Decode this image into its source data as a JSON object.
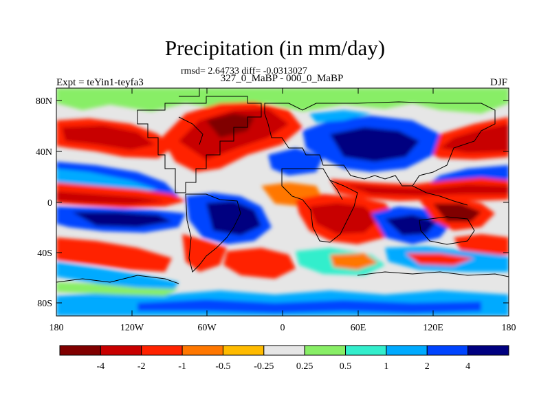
{
  "title": "Precipitation (in mm/day)",
  "stats": "rmsd= 2.64733 diff= -0.0313027",
  "subtitle": "327_0_MaBP - 000_0_MaBP",
  "left_label": "Expt = teYin1-teyfa3",
  "right_label": "DJF",
  "y_ticks": [
    "80N",
    "40N",
    "0",
    "40S",
    "80S"
  ],
  "x_ticks": [
    "180",
    "120W",
    "60W",
    "0",
    "60E",
    "120E",
    "180"
  ],
  "colorbar": {
    "colors": [
      "#800000",
      "#c80000",
      "#ff2200",
      "#ff7700",
      "#ffbb00",
      "#e6e6e6",
      "#88ee66",
      "#33eecc",
      "#00aaff",
      "#0044ff",
      "#000080"
    ],
    "labels": [
      "-4",
      "-2",
      "-1",
      "-0.5",
      "-0.25",
      "0.25",
      "0.5",
      "1",
      "2",
      "4"
    ]
  }
}
